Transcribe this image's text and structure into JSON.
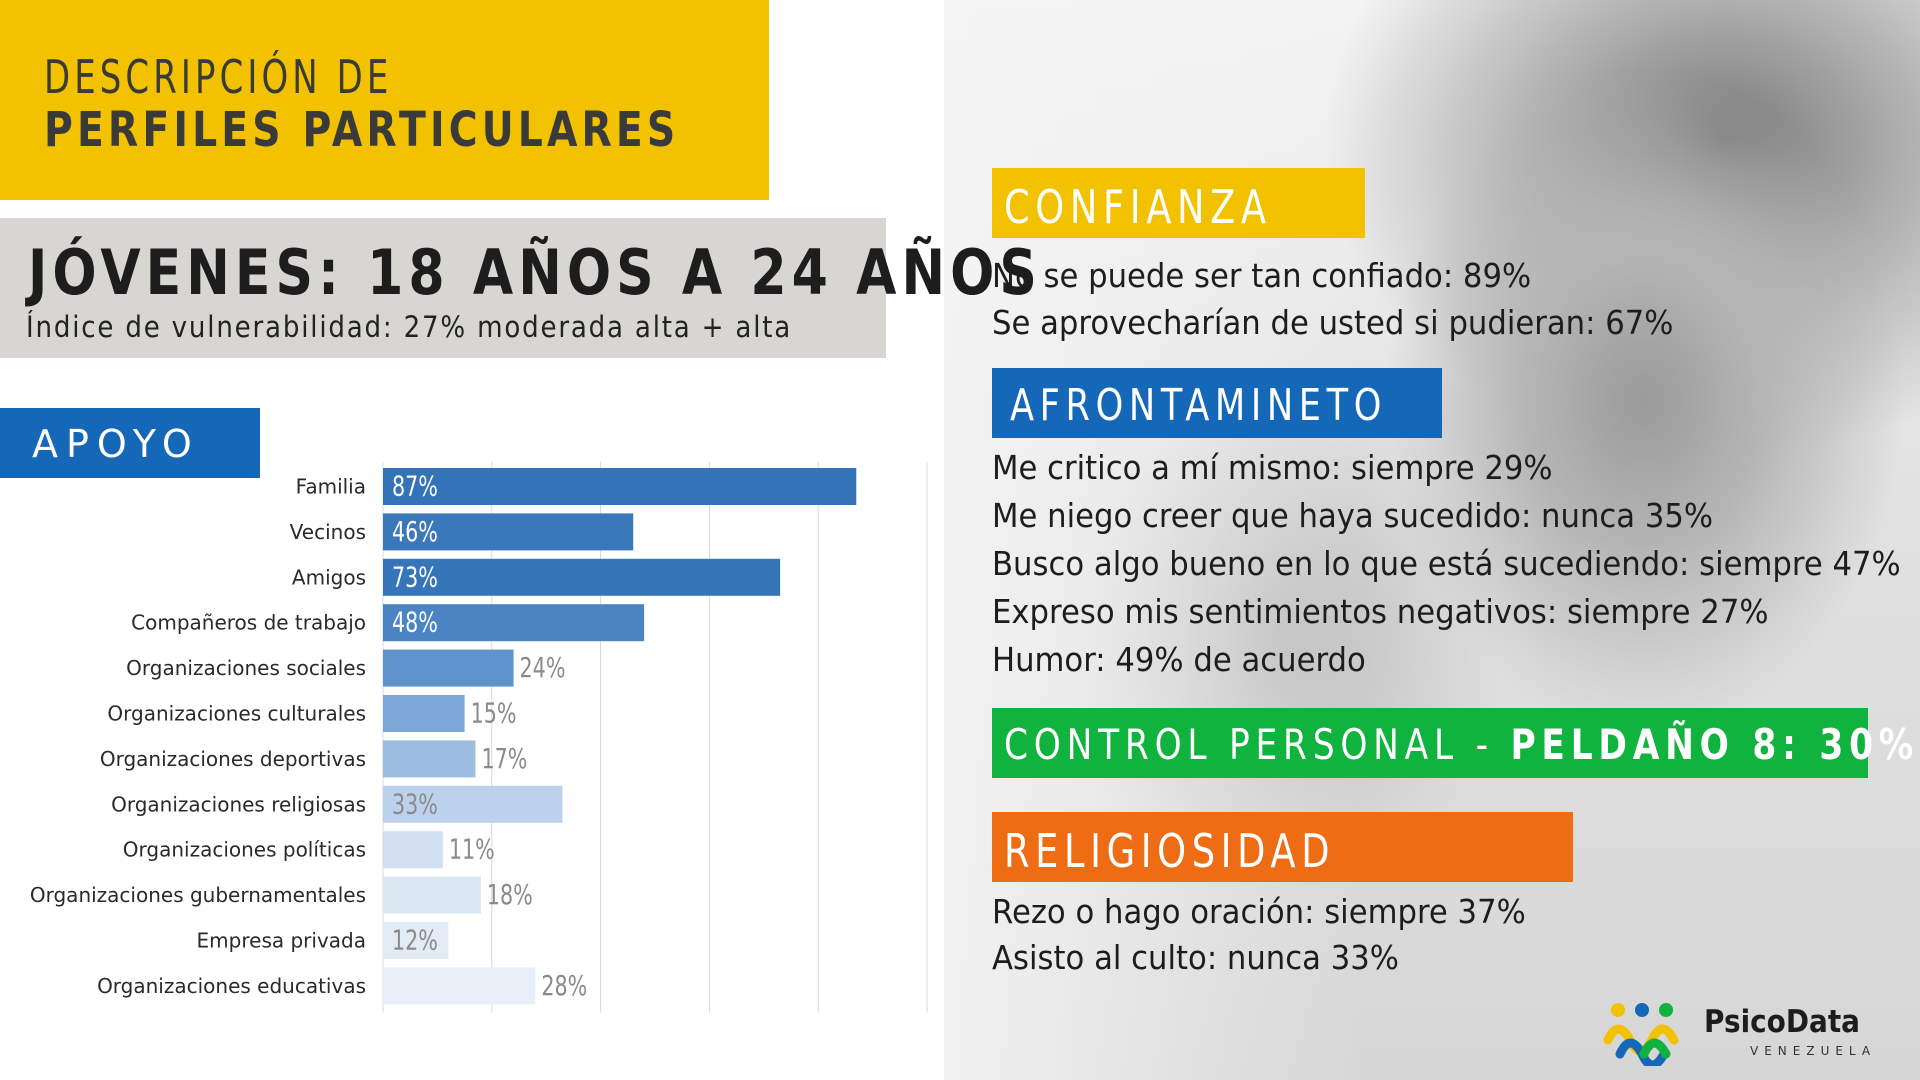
{
  "header": {
    "title_line1": "DESCRIPCIÓN DE",
    "title_line2": "PERFILES PARTICULARES"
  },
  "profile": {
    "title": "JÓVENES: 18 AÑOS A 24 AÑOS",
    "subtitle": "Índice de vulnerabilidad: 27% moderada alta + alta"
  },
  "support_section": {
    "label": "APOYO"
  },
  "chart_data": {
    "type": "bar",
    "orientation": "horizontal",
    "categories": [
      "Familia",
      "Vecinos",
      "Amigos",
      "Compañeros de trabajo",
      "Organizaciones sociales",
      "Organizaciones culturales",
      "Organizaciones deportivas",
      "Organizaciones religiosas",
      "Organizaciones políticas",
      "Organizaciones gubernamentales",
      "Empresa privada",
      "Organizaciones educativas"
    ],
    "values": [
      87,
      46,
      73,
      48,
      24,
      15,
      17,
      33,
      11,
      18,
      12,
      28
    ],
    "value_labels": [
      "87%",
      "46%",
      "73%",
      "48%",
      "24%",
      "15%",
      "17%",
      "33%",
      "11%",
      "18%",
      "12%",
      "28%"
    ],
    "bar_colors": [
      "#3473b7",
      "#3a78ba",
      "#3675b8",
      "#4a84c2",
      "#5f93cc",
      "#7ba6d6",
      "#9dbde2",
      "#bcd2ec",
      "#d2e0f2",
      "#dbe6f3",
      "#e3ecf6",
      "#e6eef7"
    ],
    "xlim": [
      0,
      100
    ],
    "grid": true
  },
  "confianza": {
    "label": "CONFIANZA",
    "items": [
      "No se puede ser tan confiado: 89%",
      "Se aprovecharían de usted si pudieran: 67%"
    ]
  },
  "afrontamiento": {
    "label": "AFRONTAMINETO",
    "items": [
      "Me critico a mí mismo: siempre 29%",
      "Me niego creer que haya sucedido: nunca 35%",
      "Busco algo bueno en lo que está sucediendo: siempre 47%",
      "Expreso mis sentimientos negativos: siempre 27%",
      "Humor: 49% de acuerdo"
    ]
  },
  "control_personal": {
    "label": "CONTROL PERSONAL - ",
    "value": "PELDAÑO 8: 30%"
  },
  "religiosidad": {
    "label": "RELIGIOSIDAD",
    "items": [
      "Rezo o hago oración: siempre 37%",
      "Asisto al culto: nunca 33%"
    ]
  },
  "logo": {
    "name": "PsicoData",
    "country": "VENEZUELA"
  },
  "colors": {
    "yellow": "#f2c200",
    "blue": "#1567b8",
    "green": "#0fb33d",
    "orange": "#ee6c14",
    "grey_block": "#d8d6d2"
  }
}
